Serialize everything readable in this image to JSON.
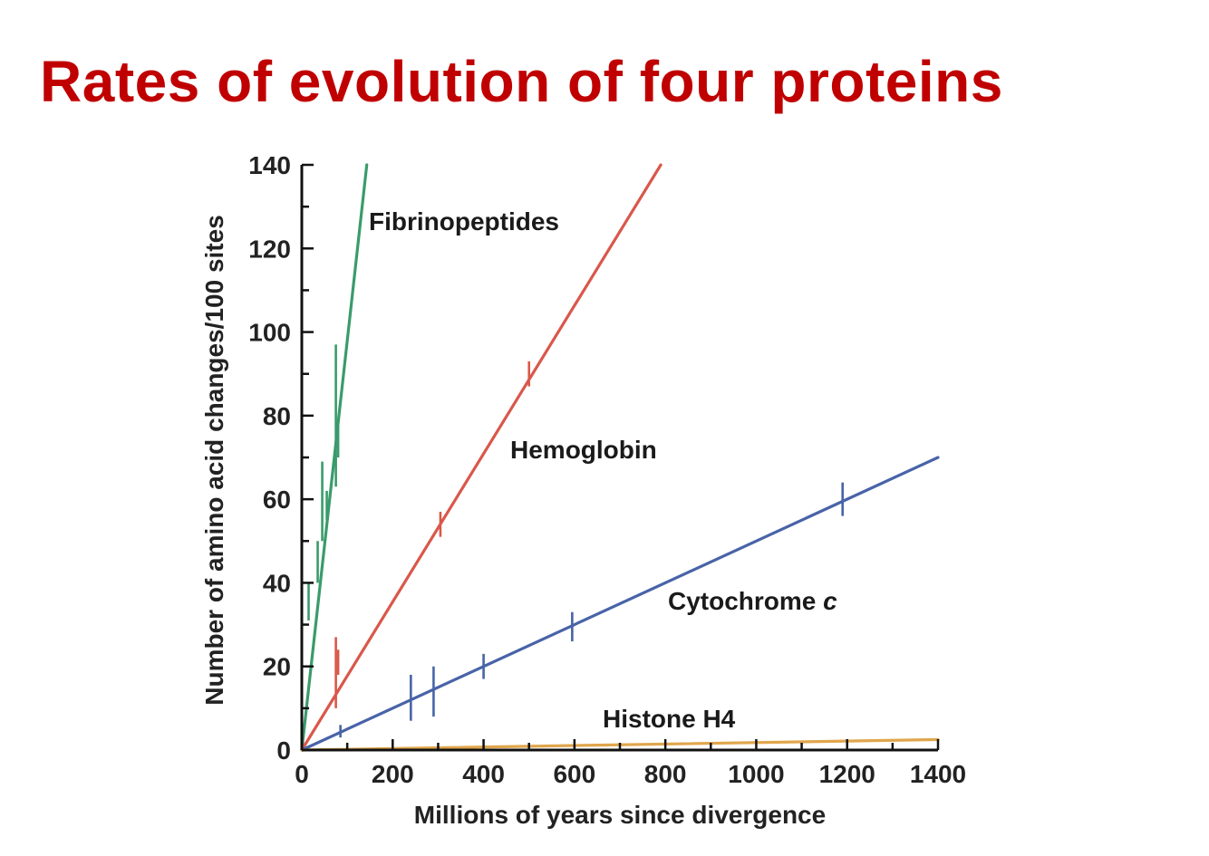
{
  "page": {
    "title": "Rates of evolution of four proteins"
  },
  "chart_data": {
    "type": "line",
    "title": "Rates of evolution of four proteins",
    "xlabel": "Millions of years since divergence",
    "ylabel": "Number of amino acid changes/100 sites",
    "xlim": [
      0,
      1400
    ],
    "ylim": [
      0,
      140
    ],
    "xticks": [
      0,
      200,
      400,
      600,
      800,
      1000,
      1200,
      1400
    ],
    "xtick_labels": [
      "0",
      "200",
      "400",
      "600",
      "800",
      "1000",
      "1200",
      "1400"
    ],
    "yticks": [
      0,
      20,
      40,
      60,
      80,
      100,
      120,
      140
    ],
    "ytick_labels": [
      "0",
      "20",
      "40",
      "60",
      "80",
      "100",
      "120",
      "140"
    ],
    "grid": false,
    "legend": "none (series labelled directly on plot)",
    "series": [
      {
        "name": "Fibrinopeptides",
        "color": "#3a9b6b",
        "line": [
          [
            0,
            0
          ],
          [
            143,
            140
          ]
        ],
        "error_bars": [
          {
            "x": 15,
            "low": 31,
            "high": 40
          },
          {
            "x": 35,
            "low": 40,
            "high": 50
          },
          {
            "x": 45,
            "low": 50,
            "high": 69
          },
          {
            "x": 55,
            "low": 55,
            "high": 62
          },
          {
            "x": 75,
            "low": 63,
            "high": 97
          },
          {
            "x": 80,
            "low": 70,
            "high": 78
          }
        ]
      },
      {
        "name": "Hemoglobin",
        "color": "#d9584a",
        "line": [
          [
            0,
            0
          ],
          [
            790,
            140
          ]
        ],
        "error_bars": [
          {
            "x": 75,
            "low": 10,
            "high": 27
          },
          {
            "x": 80,
            "low": 18,
            "high": 24
          },
          {
            "x": 305,
            "low": 51,
            "high": 57
          },
          {
            "x": 500,
            "low": 87,
            "high": 93
          }
        ]
      },
      {
        "name": "Cytochrome c",
        "color": "#4863a8",
        "line": [
          [
            0,
            0
          ],
          [
            1400,
            70
          ]
        ],
        "error_bars": [
          {
            "x": 85,
            "low": 3,
            "high": 6
          },
          {
            "x": 240,
            "low": 7,
            "high": 18
          },
          {
            "x": 290,
            "low": 8,
            "high": 20
          },
          {
            "x": 400,
            "low": 17,
            "high": 23
          },
          {
            "x": 595,
            "low": 26,
            "high": 33
          },
          {
            "x": 1190,
            "low": 56,
            "high": 64
          }
        ]
      },
      {
        "name": "Histone H4",
        "color": "#e0a64d",
        "line": [
          [
            0,
            0
          ],
          [
            1400,
            2.5
          ]
        ],
        "error_bars": []
      }
    ]
  }
}
